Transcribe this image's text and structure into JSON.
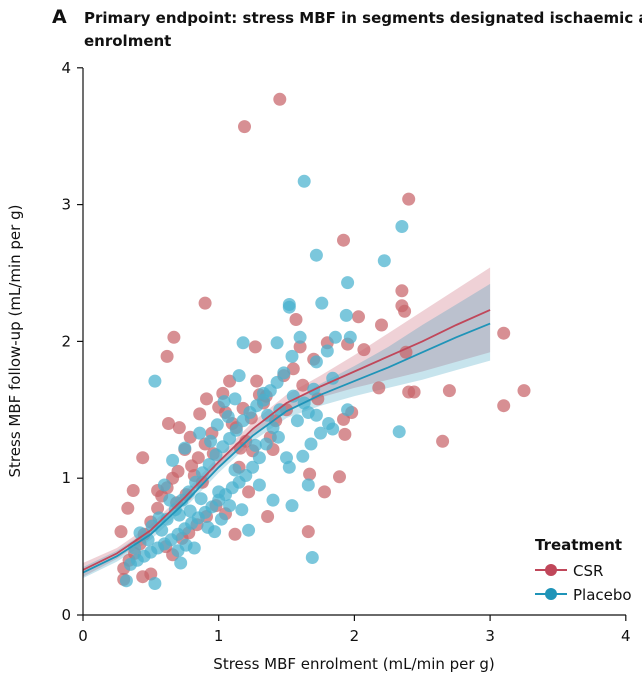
{
  "colors": {
    "csr": "#c0475a",
    "csr_point": "#c86469",
    "placebo": "#1f94b8",
    "placebo_point": "#48b1cf"
  },
  "chart_data": {
    "type": "scatter",
    "panel_letter": "A",
    "title_line1": "Primary endpoint: stress MBF in segments designated ischaemic at",
    "title_line2": "enrolment",
    "xlabel": "Stress MBF enrolment (mL/min per g)",
    "ylabel": "Stress MBF follow-up (mL/min per g)",
    "xlim": [
      0,
      4
    ],
    "ylim": [
      0,
      4
    ],
    "x_ticks": [
      "0",
      "1",
      "2",
      "3",
      "4"
    ],
    "y_ticks": [
      "0",
      "1",
      "2",
      "3",
      "4"
    ],
    "grid": false,
    "legend": {
      "title": "Treatment",
      "position": "bottom-right",
      "entries": [
        "CSR",
        "Placebo"
      ]
    },
    "series": [
      {
        "name": "CSR",
        "points": [
          [
            1.45,
            3.77
          ],
          [
            1.19,
            3.57
          ],
          [
            2.4,
            3.04
          ],
          [
            1.92,
            2.74
          ],
          [
            0.9,
            2.28
          ],
          [
            2.35,
            2.37
          ],
          [
            2.35,
            2.26
          ],
          [
            2.37,
            2.22
          ],
          [
            2.03,
            2.18
          ],
          [
            2.2,
            2.12
          ],
          [
            1.8,
            1.99
          ],
          [
            1.95,
            1.98
          ],
          [
            2.07,
            1.94
          ],
          [
            2.38,
            1.92
          ],
          [
            0.67,
            2.03
          ],
          [
            0.62,
            1.89
          ],
          [
            3.1,
            2.06
          ],
          [
            3.25,
            1.64
          ],
          [
            2.7,
            1.64
          ],
          [
            2.44,
            1.63
          ],
          [
            2.4,
            1.63
          ],
          [
            3.1,
            1.53
          ],
          [
            2.18,
            1.66
          ],
          [
            2.65,
            1.27
          ],
          [
            1.98,
            1.48
          ],
          [
            1.92,
            1.43
          ],
          [
            1.93,
            1.32
          ],
          [
            1.89,
            1.01
          ],
          [
            1.78,
            0.9
          ],
          [
            1.67,
            1.03
          ],
          [
            1.66,
            0.61
          ],
          [
            1.4,
            1.21
          ],
          [
            1.3,
            1.61
          ],
          [
            1.28,
            1.71
          ],
          [
            1.33,
            1.55
          ],
          [
            1.42,
            1.42
          ],
          [
            1.38,
            1.3
          ],
          [
            1.25,
            1.2
          ],
          [
            1.2,
            1.27
          ],
          [
            1.15,
            1.08
          ],
          [
            1.1,
            1.4
          ],
          [
            1.05,
            1.48
          ],
          [
            1.0,
            1.52
          ],
          [
            0.95,
            1.33
          ],
          [
            0.9,
            1.25
          ],
          [
            0.85,
            1.15
          ],
          [
            0.8,
            1.09
          ],
          [
            0.75,
            1.21
          ],
          [
            0.7,
            1.05
          ],
          [
            0.66,
            1.0
          ],
          [
            0.62,
            0.93
          ],
          [
            0.58,
            0.87
          ],
          [
            0.55,
            0.78
          ],
          [
            0.5,
            0.68
          ],
          [
            0.45,
            0.59
          ],
          [
            0.42,
            0.52
          ],
          [
            0.38,
            0.45
          ],
          [
            0.34,
            0.4
          ],
          [
            0.3,
            0.34
          ],
          [
            0.28,
            0.61
          ],
          [
            0.33,
            0.78
          ],
          [
            0.37,
            0.91
          ],
          [
            0.44,
            1.15
          ],
          [
            0.55,
            0.91
          ],
          [
            0.63,
            1.4
          ],
          [
            0.71,
            1.37
          ],
          [
            0.79,
            1.3
          ],
          [
            0.86,
            1.47
          ],
          [
            0.91,
            1.58
          ],
          [
            1.03,
            1.62
          ],
          [
            1.08,
            1.71
          ],
          [
            1.18,
            1.51
          ],
          [
            1.22,
            0.9
          ],
          [
            1.36,
            0.72
          ],
          [
            1.12,
            0.59
          ],
          [
            1.05,
            0.74
          ],
          [
            0.98,
            0.8
          ],
          [
            0.91,
            0.72
          ],
          [
            0.84,
            0.66
          ],
          [
            0.78,
            0.6
          ],
          [
            0.73,
            0.56
          ],
          [
            0.66,
            0.44
          ],
          [
            0.61,
            0.5
          ],
          [
            0.5,
            0.3
          ],
          [
            0.44,
            0.28
          ],
          [
            0.3,
            0.26
          ],
          [
            1.48,
            1.75
          ],
          [
            1.6,
            1.96
          ],
          [
            1.55,
            1.8
          ],
          [
            1.5,
            1.5
          ],
          [
            1.62,
            1.68
          ],
          [
            1.7,
            1.87
          ],
          [
            1.73,
            1.58
          ],
          [
            1.57,
            2.16
          ],
          [
            1.27,
            1.96
          ],
          [
            1.35,
            1.6
          ],
          [
            1.13,
            1.37
          ],
          [
            0.96,
            1.18
          ],
          [
            0.88,
            0.97
          ],
          [
            0.82,
            1.02
          ],
          [
            0.76,
            0.88
          ],
          [
            0.69,
            0.82
          ],
          [
            1.16,
            1.22
          ],
          [
            1.24,
            1.44
          ]
        ]
      },
      {
        "name": "Placebo",
        "points": [
          [
            1.63,
            3.17
          ],
          [
            2.35,
            2.84
          ],
          [
            1.72,
            2.63
          ],
          [
            2.22,
            2.59
          ],
          [
            1.95,
            2.43
          ],
          [
            1.76,
            2.28
          ],
          [
            1.52,
            2.27
          ],
          [
            1.52,
            2.25
          ],
          [
            1.94,
            2.19
          ],
          [
            1.6,
            2.03
          ],
          [
            1.86,
            2.03
          ],
          [
            1.97,
            2.03
          ],
          [
            1.18,
            1.99
          ],
          [
            1.43,
            1.99
          ],
          [
            1.8,
            1.93
          ],
          [
            1.54,
            1.89
          ],
          [
            1.72,
            1.85
          ],
          [
            1.84,
            1.73
          ],
          [
            1.95,
            1.5
          ],
          [
            2.33,
            1.34
          ],
          [
            1.84,
            1.36
          ],
          [
            1.72,
            1.46
          ],
          [
            1.66,
            0.95
          ],
          [
            1.54,
            0.8
          ],
          [
            1.69,
            0.42
          ],
          [
            1.0,
            0.9
          ],
          [
            0.53,
            1.71
          ],
          [
            0.53,
            0.23
          ],
          [
            0.32,
            0.25
          ],
          [
            1.15,
            1.75
          ],
          [
            1.33,
            1.62
          ],
          [
            1.45,
            1.5
          ],
          [
            1.4,
            1.37
          ],
          [
            1.35,
            1.25
          ],
          [
            1.3,
            1.15
          ],
          [
            1.25,
            1.08
          ],
          [
            1.2,
            1.02
          ],
          [
            1.15,
            0.97
          ],
          [
            1.1,
            0.93
          ],
          [
            1.05,
            0.88
          ],
          [
            1.0,
            0.84
          ],
          [
            0.95,
            0.79
          ],
          [
            0.9,
            0.75
          ],
          [
            0.85,
            0.71
          ],
          [
            0.8,
            0.67
          ],
          [
            0.75,
            0.63
          ],
          [
            0.7,
            0.59
          ],
          [
            0.65,
            0.55
          ],
          [
            0.6,
            0.52
          ],
          [
            0.55,
            0.49
          ],
          [
            0.5,
            0.46
          ],
          [
            0.45,
            0.43
          ],
          [
            0.4,
            0.4
          ],
          [
            0.35,
            0.37
          ],
          [
            0.58,
            0.62
          ],
          [
            0.62,
            0.7
          ],
          [
            0.68,
            0.77
          ],
          [
            0.73,
            0.84
          ],
          [
            0.78,
            0.9
          ],
          [
            0.83,
            0.97
          ],
          [
            0.88,
            1.04
          ],
          [
            0.93,
            1.1
          ],
          [
            0.98,
            1.17
          ],
          [
            1.03,
            1.23
          ],
          [
            1.08,
            1.29
          ],
          [
            1.13,
            1.35
          ],
          [
            1.18,
            1.42
          ],
          [
            1.23,
            1.48
          ],
          [
            1.28,
            1.53
          ],
          [
            1.33,
            1.57
          ],
          [
            1.38,
            1.64
          ],
          [
            1.43,
            1.7
          ],
          [
            1.48,
            1.77
          ],
          [
            1.17,
            0.77
          ],
          [
            1.22,
            0.62
          ],
          [
            1.4,
            0.84
          ],
          [
            1.3,
            0.95
          ],
          [
            1.52,
            1.08
          ],
          [
            1.62,
            1.16
          ],
          [
            1.68,
            1.25
          ],
          [
            1.75,
            1.33
          ],
          [
            1.58,
            1.42
          ],
          [
            1.63,
            1.55
          ],
          [
            1.7,
            1.65
          ],
          [
            0.72,
            0.38
          ],
          [
            0.6,
            0.95
          ],
          [
            0.66,
            1.13
          ],
          [
            0.75,
            1.22
          ],
          [
            0.86,
            1.33
          ],
          [
            0.94,
            1.27
          ],
          [
            1.07,
            1.45
          ],
          [
            1.12,
            1.58
          ],
          [
            0.97,
            0.61
          ],
          [
            0.82,
            0.49
          ],
          [
            0.7,
            0.47
          ],
          [
            0.48,
            0.55
          ],
          [
            0.42,
            0.6
          ],
          [
            0.38,
            0.49
          ],
          [
            0.51,
            0.65
          ],
          [
            0.56,
            0.71
          ],
          [
            0.64,
            0.84
          ],
          [
            0.71,
            0.73
          ],
          [
            0.76,
            0.51
          ],
          [
            0.79,
            0.76
          ],
          [
            0.87,
            0.85
          ],
          [
            0.92,
            0.64
          ],
          [
            1.02,
            0.7
          ],
          [
            1.08,
            0.8
          ],
          [
            1.12,
            1.06
          ],
          [
            1.27,
            1.24
          ],
          [
            1.36,
            1.46
          ],
          [
            1.44,
            1.3
          ],
          [
            1.5,
            1.15
          ],
          [
            1.55,
            1.6
          ],
          [
            1.66,
            1.48
          ],
          [
            1.81,
            1.4
          ],
          [
            0.99,
            1.39
          ],
          [
            1.04,
            1.56
          ]
        ]
      }
    ],
    "fit_lines": [
      {
        "name": "CSR",
        "x": [
          0,
          0.25,
          0.5,
          0.75,
          1.0,
          1.25,
          1.5,
          1.75,
          2.0,
          2.25,
          2.5,
          2.75,
          3.0
        ],
        "y": [
          0.33,
          0.45,
          0.62,
          0.86,
          1.12,
          1.36,
          1.55,
          1.67,
          1.78,
          1.89,
          2.0,
          2.12,
          2.23
        ],
        "lower": [
          0.28,
          0.41,
          0.58,
          0.82,
          1.08,
          1.31,
          1.49,
          1.59,
          1.66,
          1.72,
          1.78,
          1.85,
          1.92
        ],
        "upper": [
          0.38,
          0.49,
          0.66,
          0.9,
          1.16,
          1.41,
          1.61,
          1.75,
          1.9,
          2.06,
          2.22,
          2.38,
          2.54
        ]
      },
      {
        "name": "Placebo",
        "x": [
          0,
          0.25,
          0.5,
          0.75,
          1.0,
          1.25,
          1.5,
          1.75,
          2.0,
          2.25,
          2.5,
          2.75,
          3.0
        ],
        "y": [
          0.31,
          0.43,
          0.59,
          0.82,
          1.08,
          1.31,
          1.49,
          1.61,
          1.71,
          1.81,
          1.92,
          2.03,
          2.13
        ],
        "lower": [
          0.27,
          0.39,
          0.55,
          0.78,
          1.04,
          1.27,
          1.44,
          1.53,
          1.6,
          1.66,
          1.72,
          1.79,
          1.86
        ],
        "upper": [
          0.35,
          0.47,
          0.63,
          0.86,
          1.12,
          1.35,
          1.54,
          1.69,
          1.82,
          1.96,
          2.12,
          2.27,
          2.42
        ]
      }
    ]
  }
}
